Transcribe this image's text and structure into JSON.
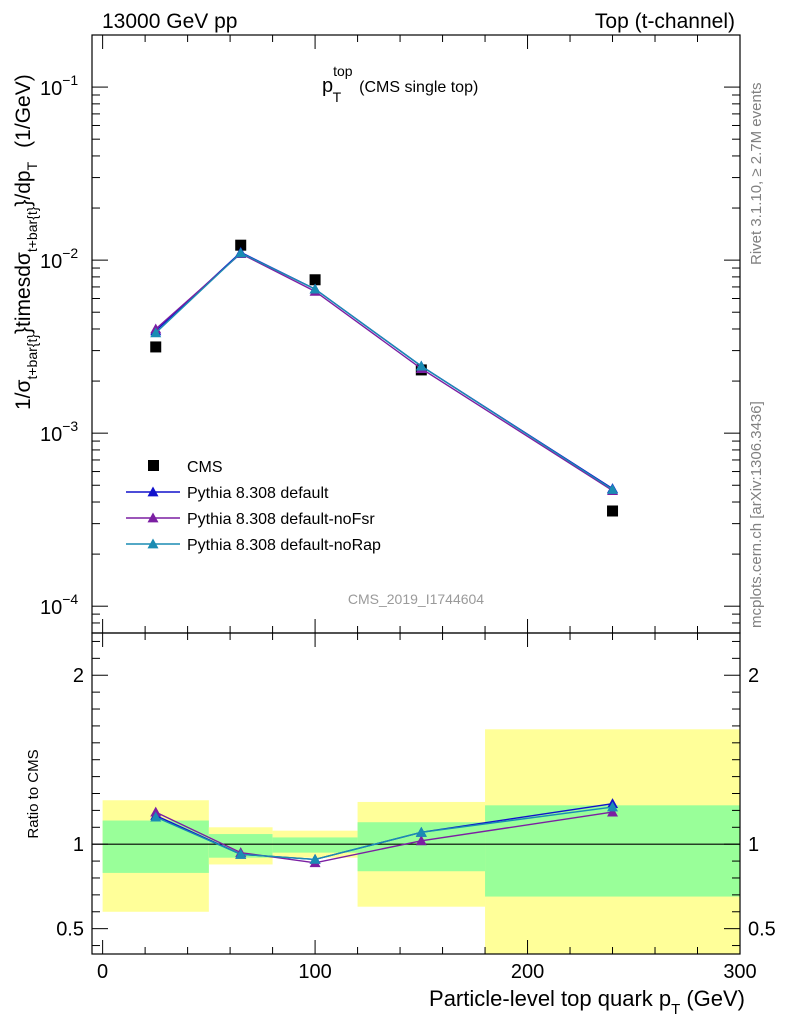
{
  "header": {
    "left": "13000 GeV pp",
    "right": "Top (t-channel)"
  },
  "side_labels": {
    "rivet": "Rivet 3.1.10, ≥ 2.7M events",
    "mcplots": "mcplots.cern.ch [arXiv:1306.3436]"
  },
  "analysis_id": "CMS_2019_I1744604",
  "chart_data": [
    {
      "type": "line",
      "panel": "main",
      "title": {
        "main": "p",
        "sub": "T",
        "sup": "top",
        "note": "(CMS single top)"
      },
      "ylabel": "1/σ_{t+bar{t}}}timesdσ_{t+bar{t}}}/dp_T  (1/GeV)",
      "ylabel_parts": {
        "a": "1/σ",
        "a_sub": "t+bar{t}",
        "b": "}timesdσ",
        "b_sub": "t+bar{t}",
        "c": "}/dp",
        "c_sub": "T",
        "d": "(1/GeV)"
      },
      "yscale": "log",
      "ylim": [
        7e-05,
        0.2
      ],
      "xlim": [
        -5,
        300
      ],
      "ytick_labels": [
        {
          "value": 0.0001,
          "base": "10",
          "exp": "−4"
        },
        {
          "value": 0.001,
          "base": "10",
          "exp": "−3"
        },
        {
          "value": 0.01,
          "base": "10",
          "exp": "−2"
        },
        {
          "value": 0.1,
          "base": "10",
          "exp": "−1"
        }
      ],
      "legend_position": "lower-left",
      "series": [
        {
          "name": "CMS",
          "color": "#000000",
          "marker": "square",
          "x": [
            25,
            65,
            100,
            150,
            240
          ],
          "y": [
            0.00315,
            0.0122,
            0.0077,
            0.00232,
            0.000355
          ]
        },
        {
          "name": "Pythia 8.308 default",
          "color": "#1111cc",
          "marker": "triangle",
          "x": [
            25,
            65,
            100,
            150,
            240
          ],
          "y": [
            0.0039,
            0.0111,
            0.0068,
            0.00244,
            0.000478
          ]
        },
        {
          "name": "Pythia 8.308 default-noFsr",
          "color": "#7b1fa2",
          "marker": "triangle",
          "x": [
            25,
            65,
            100,
            150,
            240
          ],
          "y": [
            0.004,
            0.0109,
            0.0066,
            0.00236,
            0.000466
          ]
        },
        {
          "name": "Pythia 8.308 default-noRap",
          "color": "#1a8cb3",
          "marker": "triangle",
          "x": [
            25,
            65,
            100,
            150,
            240
          ],
          "y": [
            0.0038,
            0.011,
            0.0068,
            0.00244,
            0.000473
          ]
        }
      ]
    },
    {
      "type": "line",
      "panel": "ratio",
      "ylabel": "Ratio to CMS",
      "xlabel": "Particle-level top quark p",
      "xlabel_sub": "T",
      "xlabel_unit": "(GeV)",
      "xlim": [
        -5,
        300
      ],
      "ylim": [
        0.35,
        2.25
      ],
      "xtick_labels": [
        "0",
        "100",
        "200",
        "300"
      ],
      "xtick_values": [
        0,
        100,
        200,
        300
      ],
      "ytick_labels": [
        "0.5",
        "1",
        "2"
      ],
      "ytick_values": [
        0.5,
        1,
        2
      ],
      "reference_line": 1,
      "bands": [
        {
          "x": [
            0,
            50
          ],
          "yellow": [
            0.6,
            1.26
          ],
          "green": [
            0.83,
            1.14
          ]
        },
        {
          "x": [
            50,
            80
          ],
          "yellow": [
            0.88,
            1.1
          ],
          "green": [
            0.92,
            1.06
          ]
        },
        {
          "x": [
            80,
            120
          ],
          "yellow": [
            0.92,
            1.08
          ],
          "green": [
            0.95,
            1.04
          ]
        },
        {
          "x": [
            120,
            180
          ],
          "yellow": [
            0.63,
            1.25
          ],
          "green": [
            0.84,
            1.13
          ]
        },
        {
          "x": [
            180,
            300
          ],
          "yellow": [
            0.35,
            1.68
          ],
          "green": [
            0.69,
            1.23
          ]
        }
      ],
      "series": [
        {
          "name": "Pythia 8.308 default",
          "color": "#1111cc",
          "x": [
            25,
            65,
            100,
            150,
            240
          ],
          "y": [
            1.17,
            0.94,
            0.91,
            1.07,
            1.24
          ]
        },
        {
          "name": "Pythia 8.308 default-noFsr",
          "color": "#7b1fa2",
          "x": [
            25,
            65,
            100,
            150,
            240
          ],
          "y": [
            1.19,
            0.95,
            0.89,
            1.02,
            1.19
          ]
        },
        {
          "name": "Pythia 8.308 default-noRap",
          "color": "#1a8cb3",
          "x": [
            25,
            65,
            100,
            150,
            240
          ],
          "y": [
            1.16,
            0.94,
            0.91,
            1.07,
            1.22
          ]
        }
      ]
    }
  ]
}
